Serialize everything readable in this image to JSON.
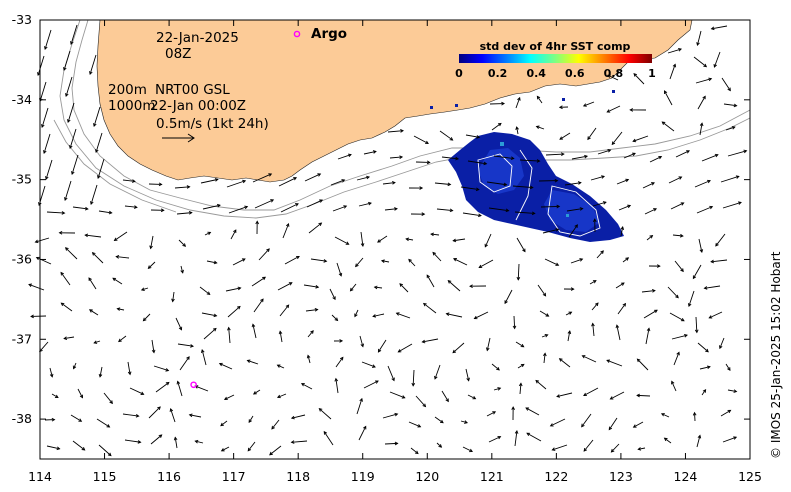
{
  "map": {
    "date_label": "22-Jan-2025",
    "time_label": "08Z",
    "legend_argo": "Argo",
    "depth_label": "200m",
    "depth_label2": "1000m",
    "product_label": "NRT00 GSL",
    "product_time": "22-Jan 00:00Z",
    "scale_label": "0.5m/s (1kt 24h)",
    "credit": "© IMOS 25-Jan-2025 15:02 Hobart",
    "colorbar": {
      "title": "std dev of 4hr SST comp",
      "ticks": [
        "0",
        "0.2",
        "0.4",
        "0.6",
        "0.8",
        "1"
      ],
      "colors": [
        "#00007f",
        "#0000ff",
        "#0080ff",
        "#00ffff",
        "#80ff80",
        "#ffff00",
        "#ff8000",
        "#ff0000",
        "#7f0000"
      ]
    },
    "x_ticks": [
      "114",
      "115",
      "116",
      "117",
      "118",
      "119",
      "120",
      "121",
      "122",
      "123",
      "124",
      "125"
    ],
    "y_ticks": [
      "-33",
      "-34",
      "-35",
      "-36",
      "-37",
      "-38"
    ],
    "x_range": [
      114,
      125
    ],
    "y_range": [
      -33,
      -38.5
    ],
    "colors": {
      "land": "#fccb97",
      "argo": "#ff00ff",
      "sst_patch": "#0a1fa6",
      "bathy": "#999999"
    },
    "argo_floats": [
      {
        "lon": 116.38,
        "lat": -37.57
      }
    ]
  }
}
